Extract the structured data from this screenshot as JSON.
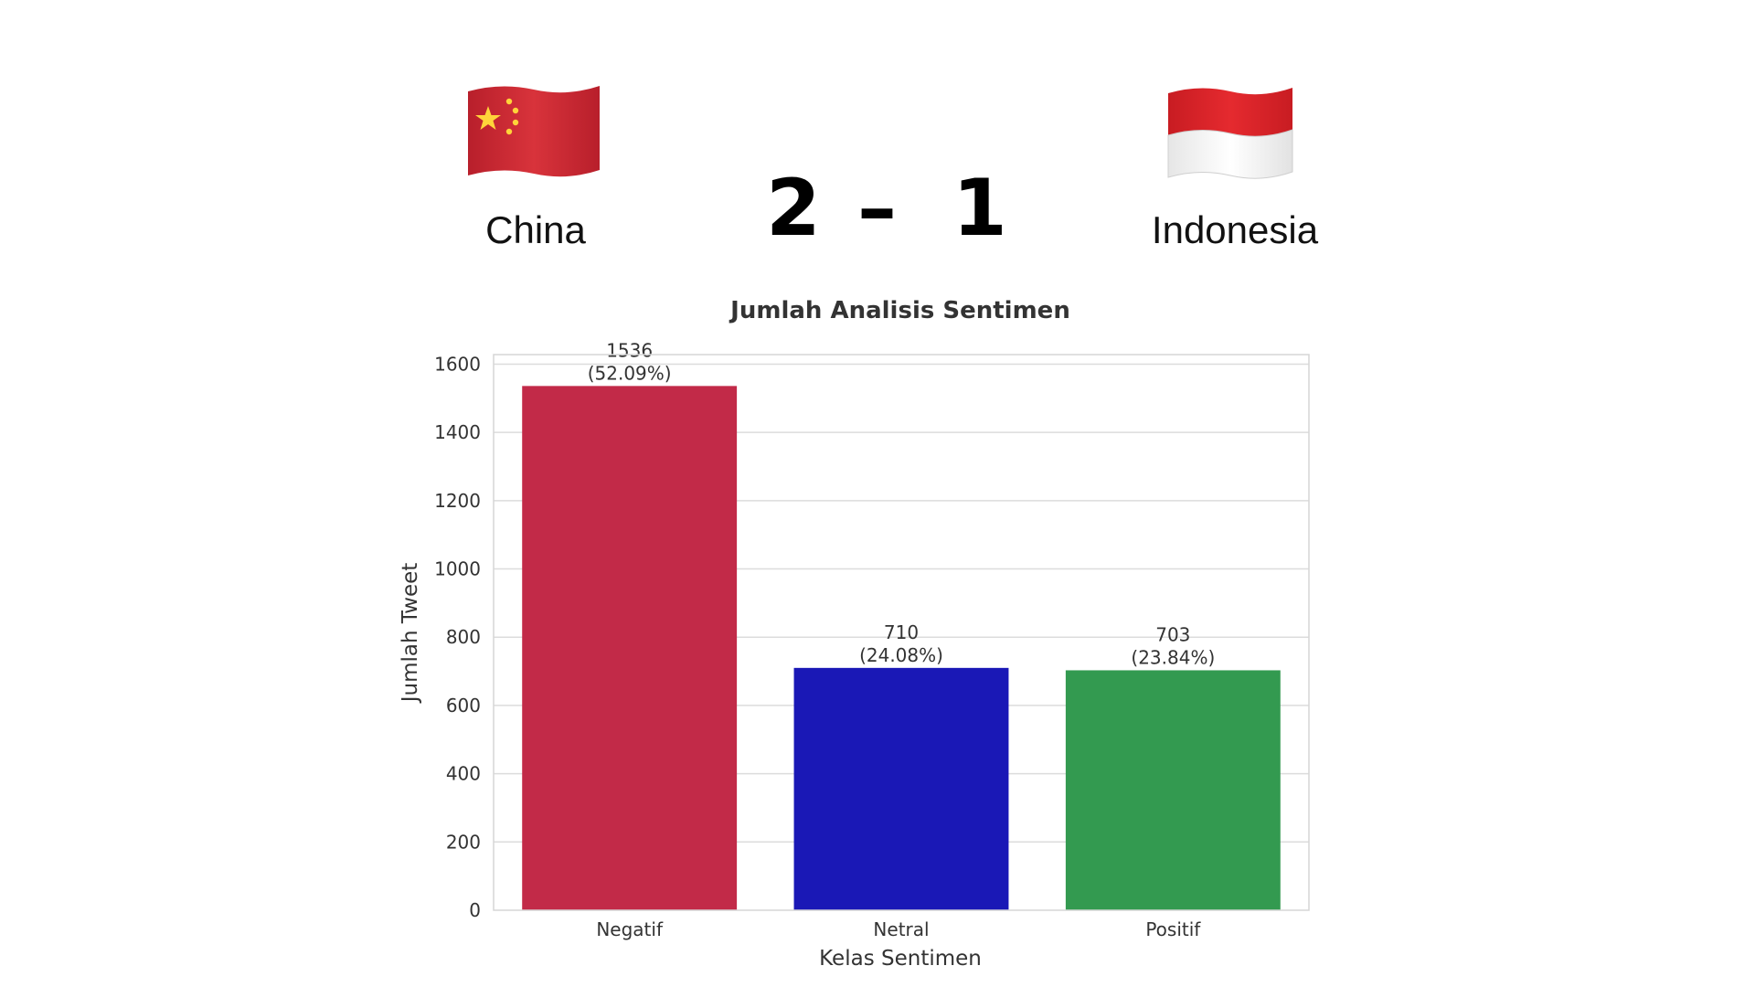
{
  "match": {
    "team_left": "China",
    "team_right": "Indonesia",
    "score_left": "2",
    "score_separator": "–",
    "score_right": "1",
    "flag_left_icon": "china-flag-icon",
    "flag_right_icon": "indonesia-flag-icon"
  },
  "chart_data": {
    "type": "bar",
    "title": "Jumlah Analisis Sentimen",
    "xlabel": "Kelas Sentimen",
    "ylabel": "Jumlah Tweet",
    "categories": [
      "Negatif",
      "Netral",
      "Positif"
    ],
    "values": [
      1536,
      710,
      703
    ],
    "percent_labels": [
      "(52.09%)",
      "(24.08%)",
      "(23.84%)"
    ],
    "colors": [
      "#c22a48",
      "#1a18b6",
      "#339a50"
    ],
    "ylim": [
      0,
      1600
    ],
    "yticks": [
      0,
      200,
      400,
      600,
      800,
      1000,
      1200,
      1400,
      1600
    ],
    "grid": true,
    "legend": "none"
  }
}
